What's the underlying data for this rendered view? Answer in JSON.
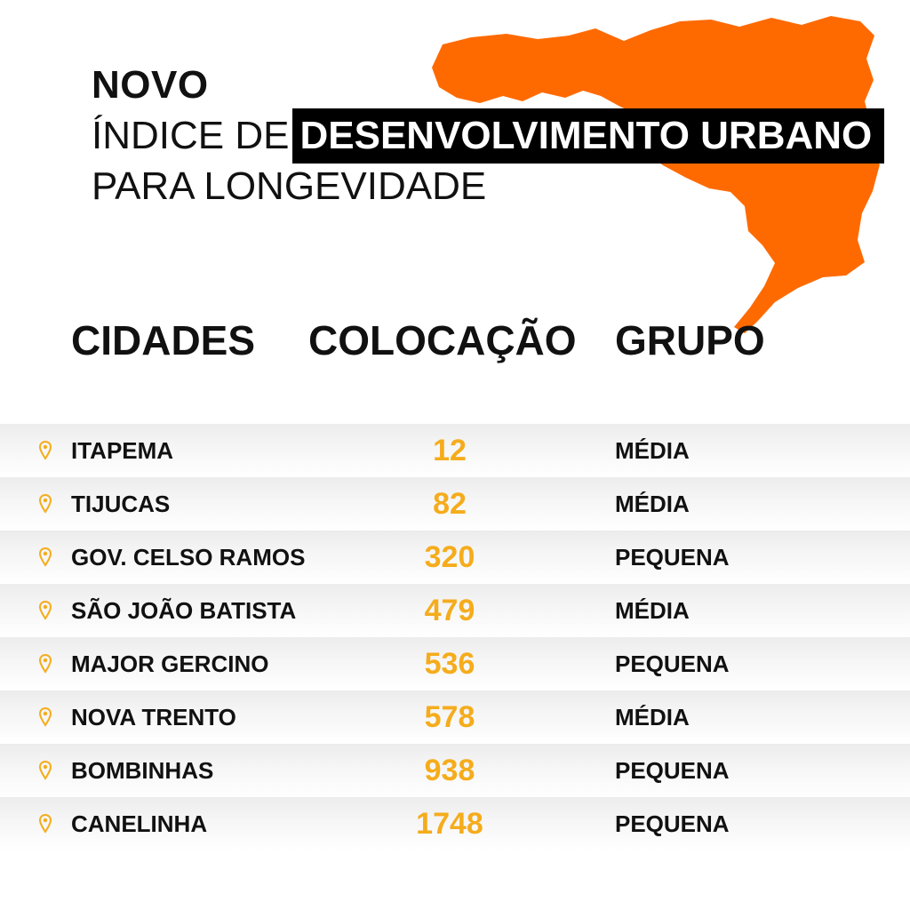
{
  "title": {
    "line1": "NOVO",
    "line2_prefix": "ÍNDICE DE",
    "line2_highlight": "DESENVOLVIMENTO URBANO",
    "line3": "PARA LONGEVIDADE"
  },
  "headers": {
    "cidades": "CIDADES",
    "colocacao": "COLOCAÇÃO",
    "grupo": "GRUPO"
  },
  "rows": [
    {
      "city": "ITAPEMA",
      "rank": "12",
      "grupo": "MÉDIA"
    },
    {
      "city": "TIJUCAS",
      "rank": "82",
      "grupo": "MÉDIA"
    },
    {
      "city": "GOV. CELSO RAMOS",
      "rank": "320",
      "grupo": "PEQUENA"
    },
    {
      "city": "SÃO JOÃO BATISTA",
      "rank": "479",
      "grupo": "MÉDIA"
    },
    {
      "city": "MAJOR GERCINO",
      "rank": "536",
      "grupo": "PEQUENA"
    },
    {
      "city": "NOVA TRENTO",
      "rank": "578",
      "grupo": "MÉDIA"
    },
    {
      "city": "BOMBINHAS",
      "rank": "938",
      "grupo": "PEQUENA"
    },
    {
      "city": "CANELINHA",
      "rank": "1748",
      "grupo": "PEQUENA"
    }
  ],
  "icons": {
    "map": "state-map-icon",
    "row_marker": "map-pin-icon"
  },
  "colors": {
    "map": "#ff6a00",
    "rank": "#f5ac1c",
    "highlight_bg": "#000000",
    "pin": "#f5ac1c"
  }
}
